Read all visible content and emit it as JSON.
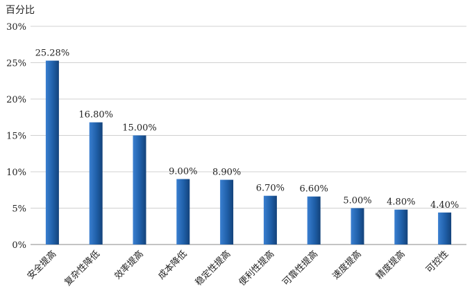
{
  "chart_data": {
    "type": "bar",
    "ylabel": "百分比",
    "categories": [
      "安全提高",
      "复杂性降低",
      "效率提高",
      "成本降低",
      "稳定性提高",
      "便利性提高",
      "可靠性提高",
      "速度提高",
      "精度提高",
      "可控性"
    ],
    "values": [
      25.28,
      16.8,
      15.0,
      9.0,
      8.9,
      6.7,
      6.6,
      5.0,
      4.8,
      4.4
    ],
    "data_labels": [
      "25.28%",
      "16.80%",
      "15.00%",
      "9.00%",
      "8.90%",
      "6.70%",
      "6.60%",
      "5.00%",
      "4.80%",
      "4.40%"
    ],
    "yticks": [
      "0%",
      "5%",
      "10%",
      "15%",
      "20%",
      "25%",
      "30%"
    ],
    "ylim": [
      0,
      30
    ],
    "grid": true,
    "bar_color": "#1f5fa8"
  }
}
